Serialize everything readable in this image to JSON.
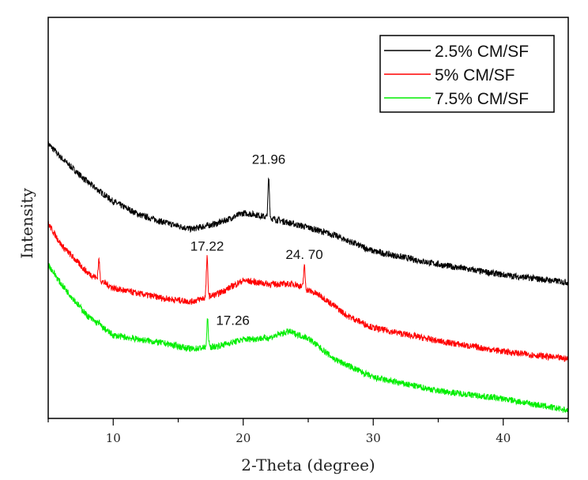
{
  "chart_data": {
    "type": "line",
    "title": "",
    "xlabel": "2-Theta (degree)",
    "ylabel": "Intensity",
    "xlim": [
      5,
      45
    ],
    "ylim": [
      0,
      100
    ],
    "xticks": [
      10,
      20,
      30,
      40
    ],
    "xticklabels": [
      "10",
      "20",
      "30",
      "40"
    ],
    "minor_xticks": [
      5,
      15,
      25,
      35,
      45
    ],
    "grid": false,
    "legend_position": "top-right",
    "series": [
      {
        "name": "2.5% CM/SF",
        "color": "#000000",
        "x": [
          5,
          6,
          8,
          10,
          12,
          14,
          16,
          18,
          20,
          21,
          23,
          25,
          27,
          30,
          35,
          40,
          45
        ],
        "y": [
          68.5,
          65,
          59,
          54.1,
          50.8,
          48.8,
          47.2,
          48.6,
          51.2,
          50.8,
          49.2,
          47.6,
          45.7,
          41.7,
          38.4,
          35.8,
          33.9
        ],
        "peaks": [
          {
            "x": 21.96,
            "y": 59.8
          }
        ]
      },
      {
        "name": "5% CM/SF",
        "color": "#ff0000",
        "x": [
          5,
          6,
          8,
          10,
          12,
          14,
          16,
          18,
          20,
          22,
          24,
          26,
          28,
          30,
          35,
          40,
          45
        ],
        "y": [
          48.6,
          43.3,
          36.4,
          32.5,
          31.1,
          29.9,
          29.1,
          31,
          34.4,
          33.5,
          33.5,
          30.5,
          25.6,
          22.6,
          19.3,
          16.7,
          14.8
        ],
        "peaks": [
          {
            "x": 8.9,
            "y": 39.5
          },
          {
            "x": 17.22,
            "y": 40
          },
          {
            "x": 24.7,
            "y": 38
          }
        ]
      },
      {
        "name": "7.5% CM/SF",
        "color": "#00ee00",
        "x": [
          5,
          6,
          8,
          10,
          12,
          14,
          16,
          18,
          20,
          22,
          23.5,
          25,
          27,
          30,
          35,
          40,
          45
        ],
        "y": [
          38.4,
          33.5,
          25.6,
          20.7,
          19.7,
          18.7,
          17.3,
          18,
          19.7,
          20.1,
          21.7,
          20,
          14.8,
          10.2,
          6.9,
          4.9,
          2
        ],
        "peaks": [
          {
            "x": 8.9,
            "y": 24
          },
          {
            "x": 17.26,
            "y": 24.6
          }
        ]
      }
    ],
    "annotations": [
      {
        "text": "21.96",
        "x": 21.96,
        "y": 63.5
      },
      {
        "text": "17.22",
        "x": 17.22,
        "y": 41.8
      },
      {
        "text": "24. 70",
        "x": 24.7,
        "y": 39.8
      },
      {
        "text": "17.26",
        "x": 19.2,
        "y": 23.3
      }
    ]
  }
}
